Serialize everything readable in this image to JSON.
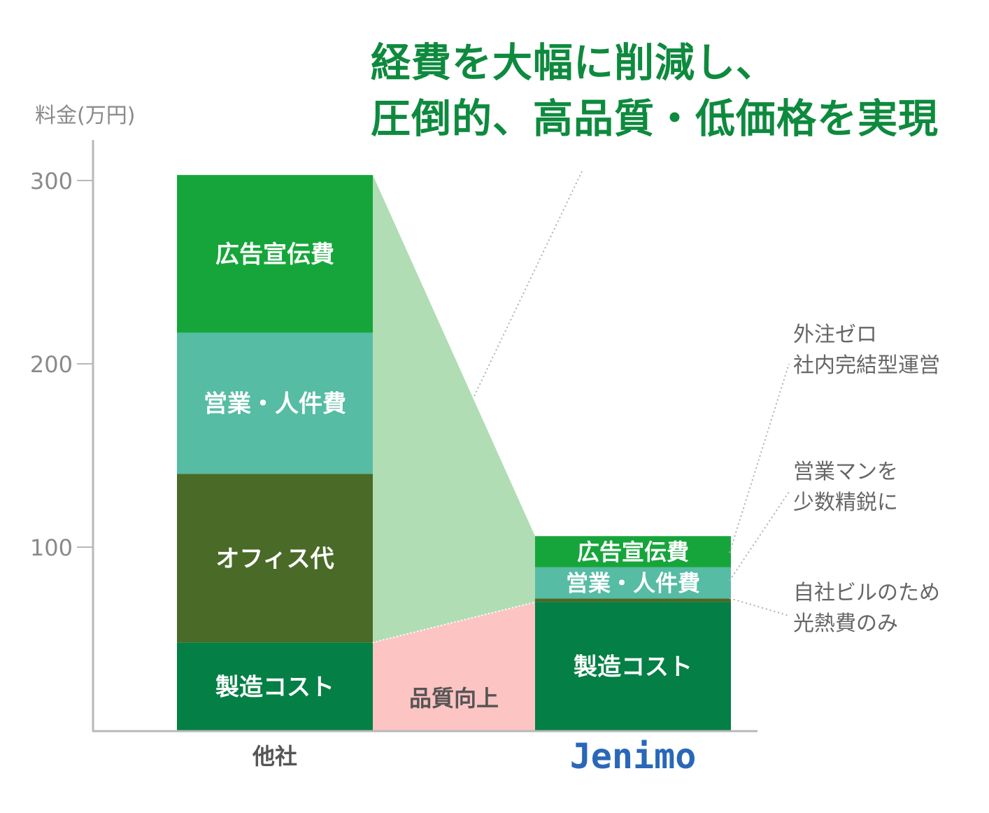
{
  "headline": {
    "line1": "経費を大幅に削減し、",
    "line2": "圧倒的、高品質・低価格を実現"
  },
  "colors": {
    "ad": "#16a53a",
    "sales": "#56bca4",
    "office": "#4a6a28",
    "manufacturing": "#047f45",
    "reduction": "#b0ddb4",
    "quality": "#fcc4c2",
    "axis": "#b8b8b8",
    "headline": "#0e8a3e",
    "brand": "#2a67b8"
  },
  "chart_data": {
    "type": "bar",
    "stacked": true,
    "ylabel": "料金(万円)",
    "ylim": [
      0,
      310
    ],
    "yticks": [
      100,
      200,
      300
    ],
    "categories": [
      "他社",
      "Jenimo"
    ],
    "series": [
      {
        "name": "製造コスト",
        "values": [
          48,
          70
        ]
      },
      {
        "name": "オフィス代",
        "values": [
          92,
          2
        ]
      },
      {
        "name": "営業・人件費",
        "values": [
          77,
          17
        ]
      },
      {
        "name": "広告宣伝費",
        "values": [
          86,
          17
        ]
      }
    ],
    "annotations": {
      "middle_band": "品質向上",
      "notes": [
        {
          "lines": [
            "外注ゼロ",
            "社内完結型運営"
          ]
        },
        {
          "lines": [
            "営業マンを",
            "少数精鋭に"
          ]
        },
        {
          "lines": [
            "自社ビルのため",
            "光熱費のみ"
          ]
        }
      ]
    }
  }
}
